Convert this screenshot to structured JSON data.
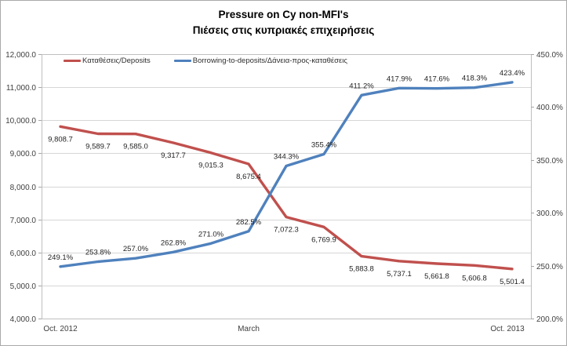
{
  "title": {
    "line1": "Pressure on Cy non-MFI's",
    "line2": "Πιέσεις στις κυπριακές επιχειρήσεις"
  },
  "legend": [
    {
      "name": "Καταθέσεις/Deposits",
      "color": "#C0504D"
    },
    {
      "name": "Borrowing-to-deposits/Δάνεια-προς-καταθέσεις",
      "color": "#4F81BD"
    }
  ],
  "colors": {
    "grid": "#D6D6D6",
    "plot_border": "#BFBFBF",
    "tick_mark": "#A6A6A6",
    "axis_text": "#3F3F3F",
    "data_label_text": "#1F1F1F",
    "background": "#FFFFFF",
    "series_deposits": "#C0504D",
    "series_borrowing": "#4F81BD"
  },
  "chart_data": {
    "type": "line",
    "n_points": 13,
    "grid": true,
    "legend_position": "top-inside",
    "x_tick_labels": [
      {
        "index": 0,
        "label": "Oct. 2012"
      },
      {
        "index": 5,
        "label": "March"
      },
      {
        "index": 12,
        "label": "Oct. 2013"
      }
    ],
    "left_axis": {
      "min": 4000,
      "max": 12000,
      "step": 1000,
      "tick_labels": [
        "4,000.0",
        "5,000.0",
        "6,000.0",
        "7,000.0",
        "8,000.0",
        "9,000.0",
        "10,000.0",
        "11,000.0",
        "12,000.0"
      ]
    },
    "right_axis": {
      "min": 200,
      "max": 450,
      "step": 50,
      "tick_labels": [
        "200.0%",
        "250.0%",
        "300.0%",
        "350.0%",
        "400.0%",
        "450.0%"
      ]
    },
    "series": [
      {
        "name": "Καταθέσεις/Deposits",
        "axis": "left",
        "color": "#C0504D",
        "label_position": "below",
        "values": [
          9808.7,
          9589.7,
          9585.0,
          9317.7,
          9015.3,
          8675.4,
          7072.3,
          6769.9,
          5883.8,
          5737.1,
          5661.8,
          5606.8,
          5501.4
        ],
        "labels": [
          "9,808.7",
          "9,589.7",
          "9,585.0",
          "9,317.7",
          "9,015.3",
          "8,675.4",
          "7,072.3",
          "6,769.9",
          "5,883.8",
          "5,737.1",
          "5,661.8",
          "5,606.8",
          "5,501.4"
        ]
      },
      {
        "name": "Borrowing-to-deposits/Δάνεια-προς-καταθέσεις",
        "axis": "right",
        "color": "#4F81BD",
        "label_position": "above",
        "values": [
          249.1,
          253.8,
          257.0,
          262.8,
          271.0,
          282.5,
          344.3,
          355.4,
          411.2,
          417.9,
          417.6,
          418.3,
          423.4
        ],
        "labels": [
          "249.1%",
          "253.8%",
          "257.0%",
          "262.8%",
          "271.0%",
          "282.5%",
          "344.3%",
          "355.4%",
          "411.2%",
          "417.9%",
          "417.6%",
          "418.3%",
          "423.4%"
        ]
      }
    ]
  }
}
